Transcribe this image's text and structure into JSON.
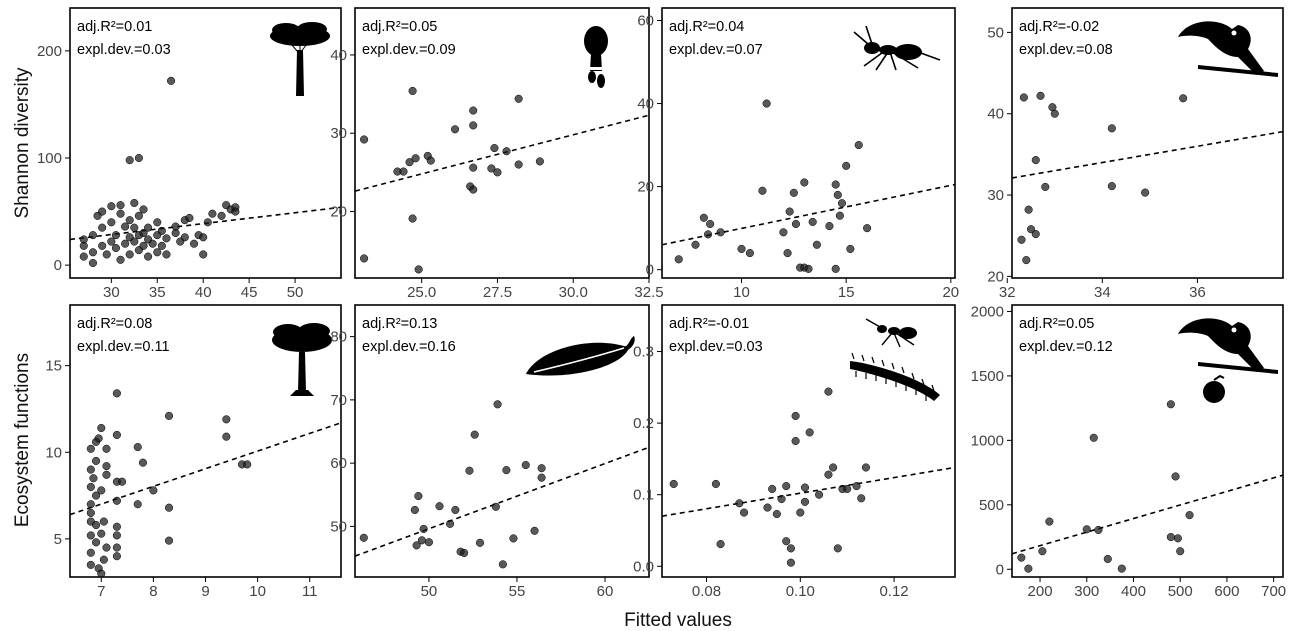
{
  "figure": {
    "ylabels": [
      "Shannon diversity",
      "Ecosystem functions"
    ],
    "xlabel": "Fitted values"
  },
  "chart_data": [
    {
      "type": "scatter",
      "row": 0,
      "col": 0,
      "icon": "tree-icon",
      "stats": [
        "adj.R²=0.01",
        "expl.dev.=0.03"
      ],
      "xlim": [
        25.5,
        55
      ],
      "ylim": [
        -12,
        240
      ],
      "xticks": [
        30,
        35,
        40,
        45,
        50
      ],
      "yticks": [
        0,
        100,
        200
      ],
      "trend": [
        [
          25.5,
          24
        ],
        [
          55,
          54
        ]
      ],
      "points": [
        [
          27,
          8
        ],
        [
          27,
          18
        ],
        [
          27,
          24
        ],
        [
          28,
          2
        ],
        [
          28,
          12
        ],
        [
          28,
          28
        ],
        [
          28.5,
          46
        ],
        [
          29,
          18
        ],
        [
          29,
          35
        ],
        [
          29,
          50
        ],
        [
          29.5,
          10
        ],
        [
          30,
          22
        ],
        [
          30,
          40
        ],
        [
          30,
          55
        ],
        [
          30.5,
          28
        ],
        [
          30.5,
          16
        ],
        [
          31,
          5
        ],
        [
          31,
          48
        ],
        [
          31,
          56
        ],
        [
          31.5,
          20
        ],
        [
          31.5,
          36
        ],
        [
          32,
          10
        ],
        [
          32,
          26
        ],
        [
          32,
          42
        ],
        [
          32,
          98
        ],
        [
          32.5,
          22
        ],
        [
          32.5,
          35
        ],
        [
          32.5,
          58
        ],
        [
          33,
          14
        ],
        [
          33,
          28
        ],
        [
          33,
          46
        ],
        [
          33,
          100
        ],
        [
          33.5,
          18
        ],
        [
          33.5,
          30
        ],
        [
          33.5,
          52
        ],
        [
          34,
          8
        ],
        [
          34,
          24
        ],
        [
          34,
          35
        ],
        [
          34.5,
          20
        ],
        [
          35,
          12
        ],
        [
          35,
          28
        ],
        [
          35,
          40
        ],
        [
          35.5,
          18
        ],
        [
          35.5,
          32
        ],
        [
          36,
          10
        ],
        [
          36,
          25
        ],
        [
          36.5,
          172
        ],
        [
          37,
          30
        ],
        [
          37,
          36
        ],
        [
          37.5,
          22
        ],
        [
          38,
          26
        ],
        [
          38,
          42
        ],
        [
          38.5,
          44
        ],
        [
          39,
          20
        ],
        [
          39.5,
          28
        ],
        [
          40,
          10
        ],
        [
          40,
          26
        ],
        [
          40.5,
          40
        ],
        [
          41,
          48
        ],
        [
          42,
          46
        ],
        [
          42.5,
          56
        ],
        [
          43,
          52
        ],
        [
          43.5,
          54
        ],
        [
          43.5,
          50
        ]
      ]
    },
    {
      "type": "scatter",
      "row": 0,
      "col": 1,
      "icon": "fungus-icon",
      "stats": [
        "adj.R²=0.05",
        "expl.dev.=0.09"
      ],
      "xlim": [
        22.8,
        32.5
      ],
      "ylim": [
        11.5,
        46
      ],
      "xticks": [
        25.0,
        27.5,
        30.0,
        32.5
      ],
      "xtick_labels": [
        "25.0",
        "27.5",
        "30.0",
        "32.5"
      ],
      "yticks": [
        20,
        30,
        40
      ],
      "trend": [
        [
          22.8,
          22.6
        ],
        [
          32.5,
          32.3
        ]
      ],
      "points": [
        [
          23.1,
          29.2
        ],
        [
          23.1,
          14
        ],
        [
          24.2,
          25.1
        ],
        [
          24.4,
          25.1
        ],
        [
          24.6,
          26.3
        ],
        [
          24.7,
          19.1
        ],
        [
          24.7,
          35.4
        ],
        [
          24.8,
          26.8
        ],
        [
          24.9,
          12.6
        ],
        [
          25.2,
          27.1
        ],
        [
          25.3,
          26.5
        ],
        [
          26.1,
          30.5
        ],
        [
          26.6,
          23.2
        ],
        [
          26.7,
          22.8
        ],
        [
          26.7,
          25.6
        ],
        [
          26.7,
          31
        ],
        [
          26.7,
          32.9
        ],
        [
          27.3,
          25.5
        ],
        [
          27.4,
          28.1
        ],
        [
          27.5,
          25
        ],
        [
          27.8,
          27.7
        ],
        [
          28.2,
          34.4
        ],
        [
          28.2,
          26
        ],
        [
          28.9,
          26.4
        ]
      ]
    },
    {
      "type": "scatter",
      "row": 0,
      "col": 2,
      "icon": "ant-icon",
      "stats": [
        "adj.R²=0.04",
        "expl.dev.=0.07"
      ],
      "xlim": [
        6.2,
        20.2
      ],
      "ylim": [
        -2,
        63
      ],
      "xticks": [
        10,
        15,
        20
      ],
      "yticks": [
        0,
        20,
        40,
        60
      ],
      "trend": [
        [
          6.2,
          6
        ],
        [
          20.2,
          20.5
        ]
      ],
      "points": [
        [
          7,
          2.5
        ],
        [
          7.8,
          6
        ],
        [
          8.2,
          12.5
        ],
        [
          8.4,
          8.5
        ],
        [
          8.5,
          11
        ],
        [
          9,
          9
        ],
        [
          10,
          5
        ],
        [
          10.4,
          4
        ],
        [
          11,
          19
        ],
        [
          11.2,
          40
        ],
        [
          12,
          9
        ],
        [
          12.2,
          4
        ],
        [
          12.3,
          14
        ],
        [
          12.5,
          18.5
        ],
        [
          12.6,
          11
        ],
        [
          12.8,
          0.5
        ],
        [
          13,
          0.5
        ],
        [
          13,
          21
        ],
        [
          13.2,
          0.2
        ],
        [
          13.4,
          11.5
        ],
        [
          13.6,
          6
        ],
        [
          14.2,
          10.5
        ],
        [
          14.5,
          0.2
        ],
        [
          14.5,
          20.5
        ],
        [
          14.6,
          18
        ],
        [
          14.7,
          13
        ],
        [
          14.8,
          16
        ],
        [
          15,
          25
        ],
        [
          15.2,
          5
        ],
        [
          15.6,
          30
        ],
        [
          16,
          10
        ]
      ]
    },
    {
      "type": "scatter",
      "row": 0,
      "col": 3,
      "icon": "toucan-icon",
      "stats": [
        "adj.R²=-0.02",
        "expl.dev.=0.08"
      ],
      "xlim": [
        32.1,
        37.8
      ],
      "ylim": [
        19.8,
        53
      ],
      "xticks": [
        32,
        34,
        36
      ],
      "yticks": [
        20,
        30,
        40,
        50
      ],
      "trend": [
        [
          32.1,
          32.1
        ],
        [
          37.8,
          37.8
        ]
      ],
      "points": [
        [
          32.3,
          24.5
        ],
        [
          32.35,
          42
        ],
        [
          32.4,
          22
        ],
        [
          32.45,
          28.2
        ],
        [
          32.5,
          25.8
        ],
        [
          32.6,
          25.2
        ],
        [
          32.6,
          34.3
        ],
        [
          32.7,
          42.2
        ],
        [
          32.8,
          31
        ],
        [
          32.95,
          40.8
        ],
        [
          33,
          40
        ],
        [
          34.2,
          38.2
        ],
        [
          34.2,
          31.1
        ],
        [
          34.9,
          30.3
        ],
        [
          35.7,
          41.9
        ]
      ]
    },
    {
      "type": "scatter",
      "row": 1,
      "col": 0,
      "icon": "acacia-tree-icon",
      "stats": [
        "adj.R²=0.08",
        "expl.dev.=0.11"
      ],
      "xlim": [
        6.4,
        11.6
      ],
      "ylim": [
        2.8,
        18.5
      ],
      "xticks": [
        7,
        8,
        9,
        10,
        11
      ],
      "yticks": [
        5,
        10,
        15
      ],
      "trend": [
        [
          6.4,
          6.4
        ],
        [
          11.6,
          11.7
        ]
      ],
      "points": [
        [
          6.8,
          3.5
        ],
        [
          6.8,
          4.2
        ],
        [
          6.8,
          5.2
        ],
        [
          6.8,
          6
        ],
        [
          6.8,
          6.5
        ],
        [
          6.8,
          7
        ],
        [
          6.8,
          8
        ],
        [
          6.8,
          9
        ],
        [
          6.8,
          10.2
        ],
        [
          6.85,
          8.5
        ],
        [
          6.9,
          4.8
        ],
        [
          6.9,
          5.8
        ],
        [
          6.9,
          7.5
        ],
        [
          6.9,
          9.5
        ],
        [
          6.9,
          10.6
        ],
        [
          6.95,
          3.3
        ],
        [
          6.95,
          10.8
        ],
        [
          7,
          3
        ],
        [
          7,
          5.3
        ],
        [
          7,
          7.8
        ],
        [
          7,
          11.4
        ],
        [
          7.05,
          3.8
        ],
        [
          7.05,
          6
        ],
        [
          7.1,
          4.5
        ],
        [
          7.1,
          8.7
        ],
        [
          7.1,
          9.2
        ],
        [
          7.1,
          10.2
        ],
        [
          7.3,
          4
        ],
        [
          7.3,
          4.5
        ],
        [
          7.3,
          5.2
        ],
        [
          7.3,
          5.7
        ],
        [
          7.3,
          7.2
        ],
        [
          7.3,
          8.3
        ],
        [
          7.3,
          11
        ],
        [
          7.3,
          13.4
        ],
        [
          7.4,
          8.3
        ],
        [
          7.7,
          7
        ],
        [
          7.7,
          10.3
        ],
        [
          7.8,
          9.4
        ],
        [
          8,
          7.8
        ],
        [
          8.3,
          12.1
        ],
        [
          8.3,
          4.9
        ],
        [
          8.3,
          6.8
        ],
        [
          9.4,
          11.9
        ],
        [
          9.4,
          10.9
        ],
        [
          9.7,
          9.3
        ],
        [
          9.8,
          9.3
        ]
      ]
    },
    {
      "type": "scatter",
      "row": 1,
      "col": 1,
      "icon": "leaf-icon",
      "stats": [
        "adj.R²=0.13",
        "expl.dev.=0.16"
      ],
      "xlim": [
        45.8,
        62.5
      ],
      "ylim": [
        42,
        85
      ],
      "xticks": [
        50,
        55,
        60
      ],
      "yticks": [
        50,
        60,
        70,
        80
      ],
      "trend": [
        [
          45.8,
          45.3
        ],
        [
          62.5,
          62.5
        ]
      ],
      "points": [
        [
          46.3,
          48.2
        ],
        [
          49.2,
          52.6
        ],
        [
          49.3,
          47
        ],
        [
          49.4,
          54.8
        ],
        [
          49.6,
          47.8
        ],
        [
          49.7,
          49.6
        ],
        [
          50,
          47.5
        ],
        [
          50.6,
          53.2
        ],
        [
          51.2,
          50.4
        ],
        [
          51.5,
          52.6
        ],
        [
          51.8,
          46
        ],
        [
          52,
          45.8
        ],
        [
          52.3,
          58.8
        ],
        [
          52.6,
          64.5
        ],
        [
          52.9,
          47.4
        ],
        [
          53.8,
          53.1
        ],
        [
          53.9,
          69.3
        ],
        [
          54.2,
          44
        ],
        [
          54.4,
          58.9
        ],
        [
          54.8,
          48.1
        ],
        [
          55.5,
          59.7
        ],
        [
          56,
          49.3
        ],
        [
          56.4,
          59.2
        ],
        [
          56.4,
          57.7
        ]
      ]
    },
    {
      "type": "scatter",
      "row": 1,
      "col": 2,
      "icon": "millipede-ant-icon",
      "stats": [
        "adj.R²=-0.01",
        "expl.dev.=0.03"
      ],
      "xlim": [
        0.0705,
        0.133
      ],
      "ylim": [
        -0.015,
        0.365
      ],
      "xticks": [
        0.08,
        0.1,
        0.12
      ],
      "xtick_labels": [
        "0.08",
        "0.10",
        "0.12"
      ],
      "yticks": [
        0.0,
        0.1,
        0.2,
        0.3
      ],
      "ytick_labels": [
        "0.0",
        "0.1",
        "0.2",
        "0.3"
      ],
      "trend": [
        [
          0.0705,
          0.07
        ],
        [
          0.133,
          0.138
        ]
      ],
      "points": [
        [
          0.073,
          0.115
        ],
        [
          0.082,
          0.115
        ],
        [
          0.083,
          0.031
        ],
        [
          0.087,
          0.088
        ],
        [
          0.088,
          0.075
        ],
        [
          0.093,
          0.082
        ],
        [
          0.094,
          0.108
        ],
        [
          0.095,
          0.073
        ],
        [
          0.096,
          0.094
        ],
        [
          0.097,
          0.035
        ],
        [
          0.097,
          0.112
        ],
        [
          0.098,
          0.025
        ],
        [
          0.098,
          0.005
        ],
        [
          0.099,
          0.175
        ],
        [
          0.099,
          0.21
        ],
        [
          0.1,
          0.075
        ],
        [
          0.101,
          0.09
        ],
        [
          0.101,
          0.11
        ],
        [
          0.102,
          0.187
        ],
        [
          0.104,
          0.1
        ],
        [
          0.106,
          0.128
        ],
        [
          0.106,
          0.244
        ],
        [
          0.107,
          0.138
        ],
        [
          0.108,
          0.025
        ],
        [
          0.109,
          0.108
        ],
        [
          0.11,
          0.108
        ],
        [
          0.112,
          0.112
        ],
        [
          0.113,
          0.095
        ],
        [
          0.114,
          0.138
        ]
      ]
    },
    {
      "type": "scatter",
      "row": 1,
      "col": 3,
      "icon": "toucan-fruit-icon",
      "stats": [
        "adj.R²=0.05",
        "expl.dev.=0.12"
      ],
      "xlim": [
        140,
        720
      ],
      "ylim": [
        -60,
        2050
      ],
      "xticks": [
        200,
        300,
        400,
        500,
        600,
        700
      ],
      "yticks": [
        0,
        500,
        1000,
        1500,
        2000
      ],
      "trend": [
        [
          140,
          120
        ],
        [
          720,
          730
        ]
      ],
      "points": [
        [
          160,
          90
        ],
        [
          175,
          5
        ],
        [
          205,
          140
        ],
        [
          220,
          370
        ],
        [
          300,
          310
        ],
        [
          315,
          1020
        ],
        [
          325,
          305
        ],
        [
          345,
          80
        ],
        [
          375,
          5
        ],
        [
          480,
          1280
        ],
        [
          480,
          250
        ],
        [
          490,
          720
        ],
        [
          495,
          240
        ],
        [
          500,
          140
        ],
        [
          520,
          420
        ]
      ]
    }
  ]
}
